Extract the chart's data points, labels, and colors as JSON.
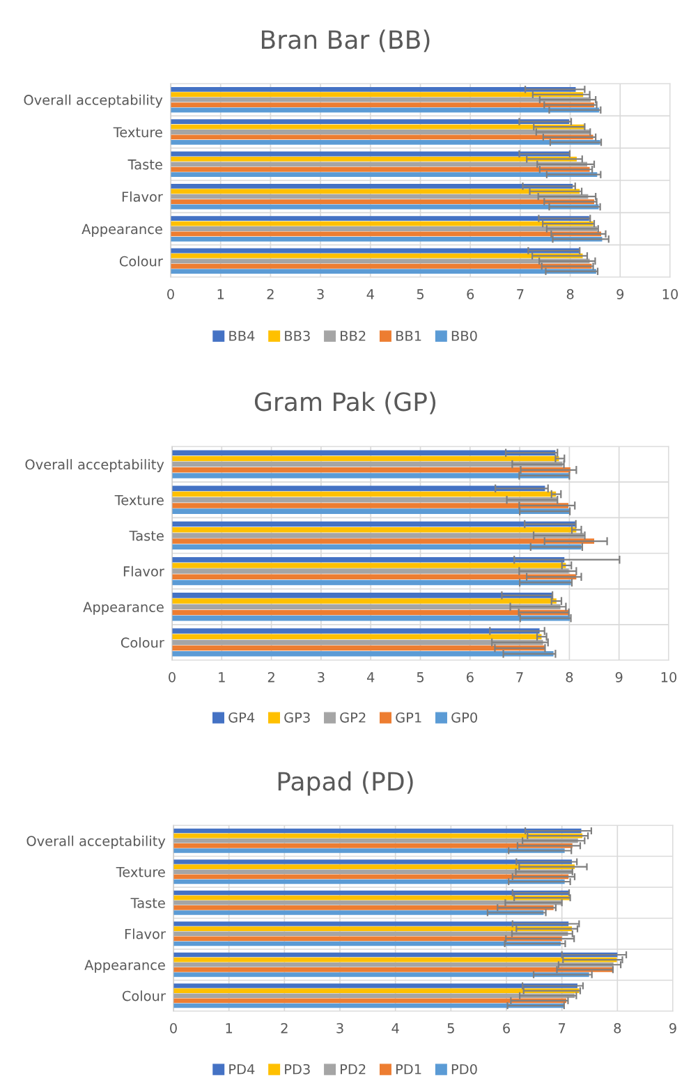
{
  "chart_data": [
    {
      "type": "bar",
      "orientation": "horizontal",
      "title": "Bran Bar (BB)",
      "categories": [
        "Overall acceptability",
        "Texture",
        "Taste",
        "Flavor",
        "Appearance",
        "Colour"
      ],
      "xlim": [
        0,
        10
      ],
      "xticks": [
        0,
        1,
        2,
        3,
        4,
        5,
        6,
        7,
        8,
        9,
        10
      ],
      "grid": "x",
      "legend": "bottom",
      "series": [
        {
          "name": "BB4",
          "color": "#4472c4",
          "values": [
            8.11,
            7.98,
            7.98,
            8.05,
            8.38,
            8.18
          ],
          "errors": [
            [
              7.1,
              8.29
            ],
            [
              6.98,
              8.02
            ],
            [
              6.98,
              7.99
            ],
            [
              7.05,
              8.1
            ],
            [
              7.37,
              8.4
            ],
            [
              7.16,
              8.19
            ]
          ]
        },
        {
          "name": "BB3",
          "color": "#ffc000",
          "values": [
            8.26,
            8.29,
            8.13,
            8.19,
            8.46,
            8.25
          ],
          "errors": [
            [
              7.25,
              8.39
            ],
            [
              7.27,
              8.29
            ],
            [
              7.13,
              8.24
            ],
            [
              7.19,
              8.23
            ],
            [
              7.45,
              8.48
            ],
            [
              7.24,
              8.34
            ]
          ]
        },
        {
          "name": "BB2",
          "color": "#a5a5a5",
          "values": [
            8.41,
            8.39,
            8.34,
            8.36,
            8.54,
            8.39
          ],
          "errors": [
            [
              7.39,
              8.51
            ],
            [
              7.32,
              8.4
            ],
            [
              7.34,
              8.48
            ],
            [
              7.36,
              8.51
            ],
            [
              7.53,
              8.56
            ],
            [
              7.38,
              8.5
            ]
          ]
        },
        {
          "name": "BB1",
          "color": "#ed7d31",
          "values": [
            8.48,
            8.46,
            8.39,
            8.48,
            8.62,
            8.43
          ],
          "errors": [
            [
              7.48,
              8.53
            ],
            [
              7.46,
              8.51
            ],
            [
              7.39,
              8.44
            ],
            [
              7.48,
              8.53
            ],
            [
              7.62,
              8.71
            ],
            [
              7.43,
              8.46
            ]
          ]
        },
        {
          "name": "BB0",
          "color": "#5b9bd5",
          "values": [
            8.58,
            8.6,
            8.54,
            8.57,
            8.64,
            8.52
          ],
          "errors": [
            [
              7.58,
              8.61
            ],
            [
              7.6,
              8.62
            ],
            [
              7.53,
              8.61
            ],
            [
              7.58,
              8.6
            ],
            [
              7.65,
              8.77
            ],
            [
              7.51,
              8.55
            ]
          ]
        }
      ]
    },
    {
      "type": "bar",
      "orientation": "horizontal",
      "title": "Gram Pak (GP)",
      "categories": [
        "Overall acceptability",
        "Texture",
        "Taste",
        "Flavor",
        "Appearance",
        "Colour"
      ],
      "xlim": [
        0,
        10
      ],
      "xticks": [
        0,
        1,
        2,
        3,
        4,
        5,
        6,
        7,
        8,
        9,
        10
      ],
      "grid": "x",
      "legend": "bottom",
      "series": [
        {
          "name": "GP4",
          "color": "#4472c4",
          "values": [
            7.72,
            7.51,
            8.12,
            7.9,
            7.65,
            7.4
          ],
          "errors": [
            [
              6.72,
              7.76
            ],
            [
              6.51,
              7.57
            ],
            [
              7.1,
              8.13
            ],
            [
              6.89,
              9.01
            ],
            [
              6.64,
              7.66
            ],
            [
              6.4,
              7.5
            ]
          ]
        },
        {
          "name": "GP3",
          "color": "#ffc000",
          "values": [
            7.79,
            7.73,
            8.14,
            7.93,
            7.74,
            7.44
          ],
          "errors": [
            [
              7.72,
              7.9
            ],
            [
              7.64,
              7.83
            ],
            [
              8.05,
              8.24
            ],
            [
              7.85,
              8.04
            ],
            [
              7.64,
              7.84
            ],
            [
              7.35,
              7.54
            ]
          ]
        },
        {
          "name": "GP2",
          "color": "#a5a5a5",
          "values": [
            7.86,
            7.75,
            8.29,
            7.99,
            7.82,
            7.47
          ],
          "errors": [
            [
              6.85,
              7.89
            ],
            [
              6.74,
              7.76
            ],
            [
              7.28,
              8.31
            ],
            [
              6.99,
              8.14
            ],
            [
              6.81,
              7.93
            ],
            [
              6.44,
              7.57
            ]
          ]
        },
        {
          "name": "GP1",
          "color": "#ed7d31",
          "values": [
            8.02,
            7.98,
            8.5,
            8.14,
            7.98,
            7.5
          ],
          "errors": [
            [
              7.02,
              8.14
            ],
            [
              6.99,
              8.11
            ],
            [
              7.5,
              8.76
            ],
            [
              7.14,
              8.24
            ],
            [
              6.98,
              7.99
            ],
            [
              6.5,
              7.51
            ]
          ]
        },
        {
          "name": "GP0",
          "color": "#5b9bd5",
          "values": [
            7.99,
            8.0,
            8.24,
            8.03,
            8.01,
            7.68
          ],
          "errors": [
            [
              6.99,
              8.0
            ],
            [
              7.0,
              8.01
            ],
            [
              7.22,
              8.26
            ],
            [
              7.0,
              8.05
            ],
            [
              7.01,
              8.03
            ],
            [
              6.67,
              7.72
            ]
          ]
        }
      ]
    },
    {
      "type": "bar",
      "orientation": "horizontal",
      "title": "Papad (PD)",
      "categories": [
        "Overall acceptability",
        "Texture",
        "Taste",
        "Flavor",
        "Appearance",
        "Colour"
      ],
      "xlim": [
        0,
        9
      ],
      "xticks": [
        0,
        1,
        2,
        3,
        4,
        5,
        6,
        7,
        8,
        9
      ],
      "grid": "x",
      "legend": "bottom",
      "series": [
        {
          "name": "PD4",
          "color": "#4472c4",
          "values": [
            7.35,
            7.18,
            7.12,
            7.12,
            8.0,
            7.28
          ],
          "errors": [
            [
              6.34,
              7.53
            ],
            [
              6.18,
              7.27
            ],
            [
              6.11,
              7.13
            ],
            [
              6.11,
              7.31
            ],
            [
              7.0,
              8.16
            ],
            [
              6.29,
              7.38
            ]
          ]
        },
        {
          "name": "PD3",
          "color": "#ffc000",
          "values": [
            7.37,
            7.23,
            7.14,
            7.18,
            7.99,
            7.31
          ],
          "errors": [
            [
              6.38,
              7.47
            ],
            [
              6.23,
              7.45
            ],
            [
              6.14,
              7.15
            ],
            [
              6.18,
              7.28
            ],
            [
              7.02,
              8.09
            ],
            [
              6.31,
              7.33
            ]
          ]
        },
        {
          "name": "PD2",
          "color": "#a5a5a5",
          "values": [
            7.29,
            7.18,
            6.99,
            7.11,
            7.93,
            7.23
          ],
          "errors": [
            [
              6.29,
              7.41
            ],
            [
              6.17,
              7.19
            ],
            [
              5.98,
              7.0
            ],
            [
              6.1,
              7.19
            ],
            [
              6.94,
              8.06
            ],
            [
              6.24,
              7.26
            ]
          ]
        },
        {
          "name": "PD1",
          "color": "#ed7d31",
          "values": [
            7.19,
            7.12,
            6.85,
            7.0,
            7.91,
            7.08
          ],
          "errors": [
            [
              6.2,
              7.33
            ],
            [
              6.11,
              7.23
            ],
            [
              5.84,
              6.89
            ],
            [
              5.99,
              7.22
            ],
            [
              6.91,
              7.92
            ],
            [
              6.08,
              7.11
            ]
          ]
        },
        {
          "name": "PD0",
          "color": "#5b9bd5",
          "values": [
            7.05,
            7.05,
            6.67,
            6.98,
            7.49,
            7.03
          ],
          "errors": [
            [
              6.04,
              7.17
            ],
            [
              6.04,
              7.15
            ],
            [
              5.66,
              6.71
            ],
            [
              5.97,
              7.06
            ],
            [
              6.49,
              7.54
            ],
            [
              6.02,
              7.04
            ]
          ]
        }
      ]
    }
  ]
}
